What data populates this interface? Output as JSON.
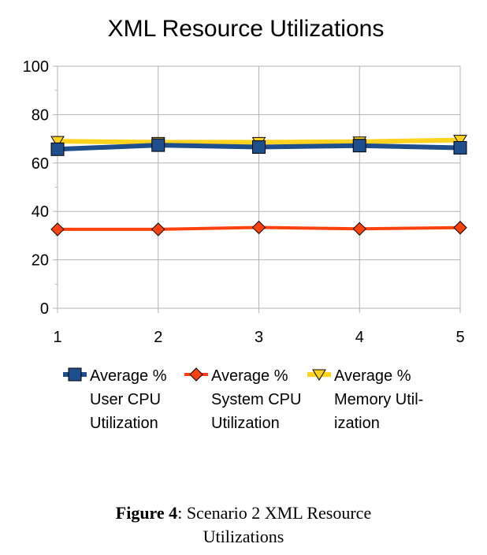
{
  "chart_data": {
    "type": "line",
    "title": "XML Resource Utilizations",
    "xlabel": "",
    "ylabel": "",
    "categories": [
      "1",
      "2",
      "3",
      "4",
      "5"
    ],
    "ylim": [
      0,
      100
    ],
    "yticks": [
      0,
      20,
      40,
      60,
      80,
      100
    ],
    "grid": true,
    "legend_position": "bottom",
    "series": [
      {
        "name": "Average % User CPU Utilization",
        "legend_lines": [
          "Average %",
          "User CPU",
          "Utilization"
        ],
        "values": [
          65.7,
          67.4,
          66.6,
          67.2,
          66.3
        ],
        "color": "#1f4e8c",
        "marker": "square"
      },
      {
        "name": "Average % System CPU Utilization",
        "legend_lines": [
          "Average %",
          "System CPU",
          "Utilization"
        ],
        "values": [
          32.6,
          32.6,
          33.4,
          32.8,
          33.3
        ],
        "color": "#ff420e",
        "marker": "diamond"
      },
      {
        "name": "Average % Memory Utilization",
        "legend_lines": [
          "Average %",
          "Memory Util-",
          "ization"
        ],
        "values": [
          69.0,
          68.6,
          68.6,
          68.8,
          69.5
        ],
        "color": "#ffd320",
        "marker": "triangle"
      }
    ]
  },
  "caption": {
    "label": "Figure 4",
    "sep": ":",
    "text_line1": " Scenario 2 XML Resource",
    "text_line2": "Utilizations"
  }
}
